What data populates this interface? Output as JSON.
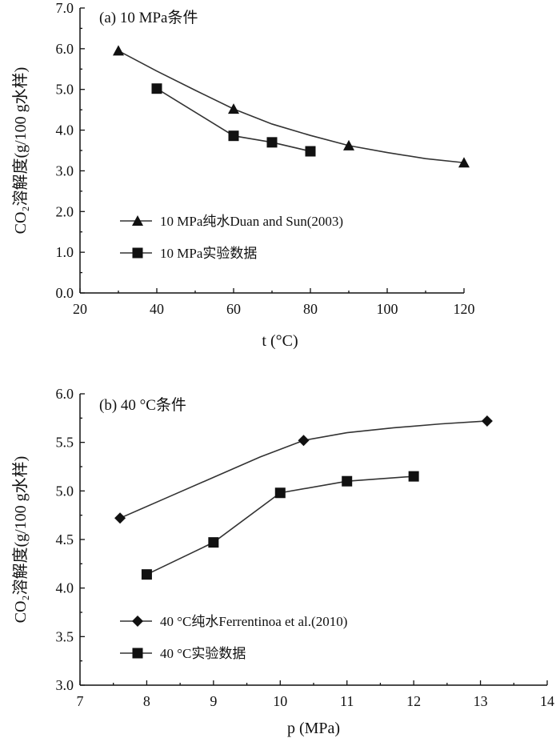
{
  "chart_data": [
    {
      "type": "line",
      "title": "(a) 10 MPa条件",
      "xlabel": "t (°C)",
      "ylabel": "CO₂溶解度(g/100 g水样)",
      "xlim": [
        20,
        120
      ],
      "ylim": [
        0.0,
        7.0
      ],
      "x_ticks": [
        "20",
        "40",
        "60",
        "80",
        "100",
        "120"
      ],
      "y_ticks": [
        "0.0",
        "1.0",
        "2.0",
        "3.0",
        "4.0",
        "5.0",
        "6.0",
        "7.0"
      ],
      "legend_position": "lower-left",
      "series": [
        {
          "name": "10 MPa纯水Duan and Sun(2003)",
          "marker": "triangle",
          "x": [
            30,
            60,
            90,
            120
          ],
          "y": [
            5.95,
            4.52,
            3.62,
            3.2
          ],
          "curve": {
            "x": [
              30,
              40,
              50,
              60,
              70,
              80,
              90,
              100,
              110,
              120
            ],
            "y": [
              5.95,
              5.45,
              4.98,
              4.52,
              4.15,
              3.87,
              3.62,
              3.45,
              3.3,
              3.2
            ]
          }
        },
        {
          "name": "10 MPa实验数据",
          "marker": "square",
          "x": [
            40,
            60,
            70,
            80
          ],
          "y": [
            5.02,
            3.86,
            3.7,
            3.48
          ]
        }
      ]
    },
    {
      "type": "line",
      "title": "(b) 40 °C条件",
      "xlabel": "p (MPa)",
      "ylabel": "CO₂溶解度(g/100 g水样)",
      "xlim": [
        7,
        14
      ],
      "ylim": [
        3.0,
        6.0
      ],
      "x_ticks": [
        "7",
        "8",
        "9",
        "10",
        "11",
        "12",
        "13",
        "14"
      ],
      "y_ticks": [
        "3.0",
        "3.5",
        "4.0",
        "4.5",
        "5.0",
        "5.5",
        "6.0"
      ],
      "legend_position": "lower-left",
      "series": [
        {
          "name": "40 °C纯水Ferrentinoa et al.(2010)",
          "marker": "diamond",
          "x": [
            7.6,
            10.35,
            13.1
          ],
          "y": [
            4.72,
            5.52,
            5.72
          ],
          "curve": {
            "x": [
              7.6,
              8.3,
              9.0,
              9.7,
              10.35,
              11.0,
              11.7,
              12.4,
              13.1
            ],
            "y": [
              4.72,
              4.93,
              5.14,
              5.35,
              5.52,
              5.6,
              5.65,
              5.69,
              5.72
            ]
          }
        },
        {
          "name": "40 °C实验数据",
          "marker": "square",
          "x": [
            8,
            9,
            10,
            11,
            12
          ],
          "y": [
            4.14,
            4.47,
            4.98,
            5.1,
            5.15
          ]
        }
      ]
    }
  ]
}
